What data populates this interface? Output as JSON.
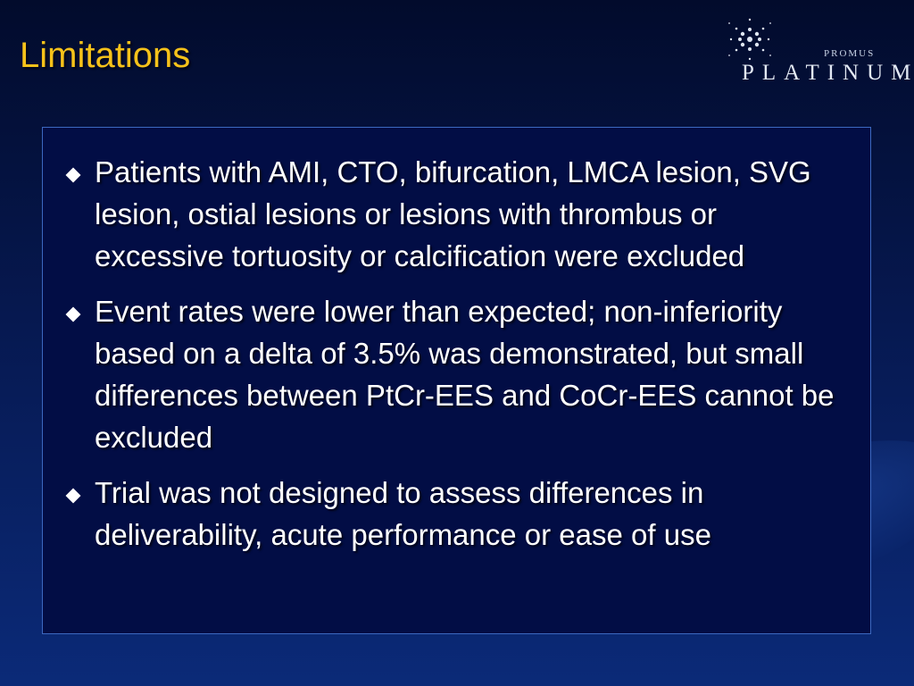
{
  "slide": {
    "title": "Limitations",
    "logo": {
      "brand_small": "PROMUS",
      "brand_large": "PLATINUM"
    },
    "bullets": [
      "Patients with AMI, CTO, bifurcation, LMCA lesion, SVG lesion, ostial lesions or lesions with thrombus or excessive tortuosity or calcification were excluded",
      "Event rates were lower than expected; non-inferiority based on a delta of 3.5% was demonstrated, but small differences between PtCr-EES and CoCr-EES cannot be excluded",
      "Trial was not designed to assess differences in deliverability, acute performance or ease of use"
    ]
  }
}
